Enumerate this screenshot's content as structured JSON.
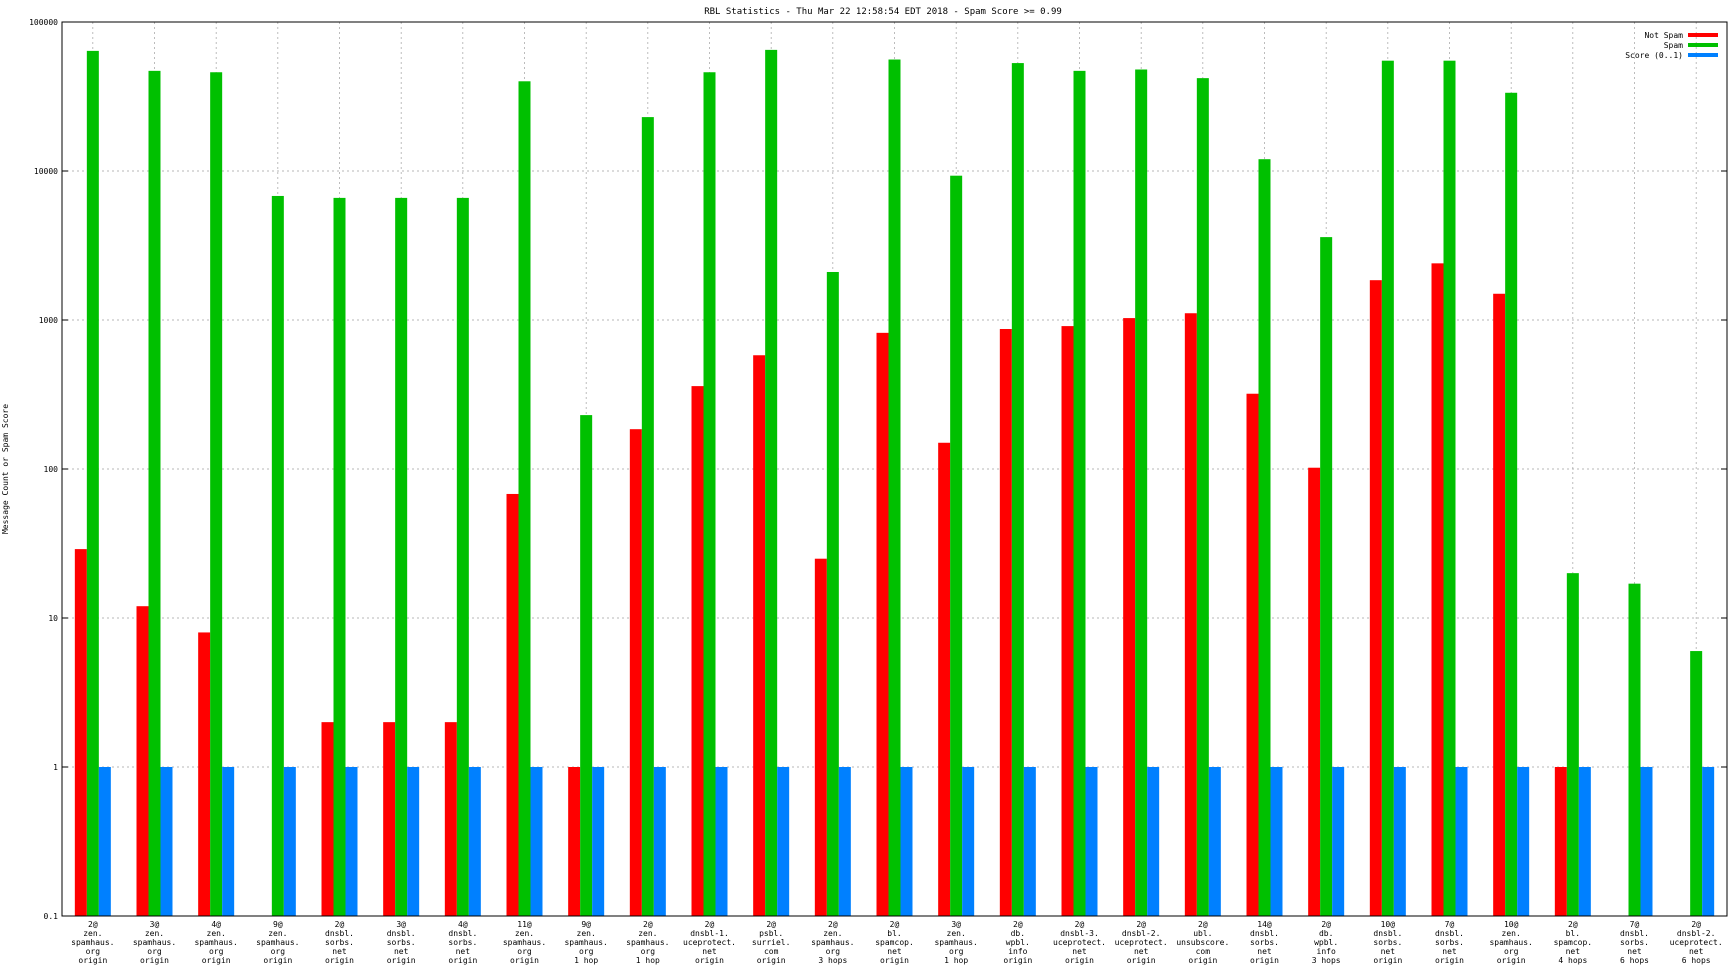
{
  "chart_data": {
    "type": "bar",
    "title": "RBL Statistics - Thu Mar 22 12:58:54 EDT 2018 - Spam Score >= 0.99",
    "ylabel": "Message Count or Spam Score",
    "xlabel": "",
    "yscale": "log",
    "ylim": [
      0.1,
      100000
    ],
    "yticks": [
      {
        "value": 0.1,
        "label": "0.1"
      },
      {
        "value": 1,
        "label": "1"
      },
      {
        "value": 10,
        "label": "10"
      },
      {
        "value": 100,
        "label": "100"
      },
      {
        "value": 1000,
        "label": "1000"
      },
      {
        "value": 10000,
        "label": "10000"
      },
      {
        "value": 100000,
        "label": "100000"
      }
    ],
    "grid": true,
    "legend_position": "top-right",
    "categories": [
      [
        "2@",
        "zen.",
        "spamhaus.",
        "org",
        "origin"
      ],
      [
        "3@",
        "zen.",
        "spamhaus.",
        "org",
        "origin"
      ],
      [
        "4@",
        "zen.",
        "spamhaus.",
        "org",
        "origin"
      ],
      [
        "9@",
        "zen.",
        "spamhaus.",
        "org",
        "origin"
      ],
      [
        "2@",
        "dnsbl.",
        "sorbs.",
        "net",
        "origin"
      ],
      [
        "3@",
        "dnsbl.",
        "sorbs.",
        "net",
        "origin"
      ],
      [
        "4@",
        "dnsbl.",
        "sorbs.",
        "net",
        "origin"
      ],
      [
        "11@",
        "zen.",
        "spamhaus.",
        "org",
        "origin"
      ],
      [
        "9@",
        "zen.",
        "spamhaus.",
        "org",
        "1 hop"
      ],
      [
        "2@",
        "zen.",
        "spamhaus.",
        "org",
        "1 hop"
      ],
      [
        "2@",
        "dnsbl-1.",
        "uceprotect.",
        "net",
        "origin"
      ],
      [
        "2@",
        "psbl.",
        "surriel.",
        "com",
        "origin"
      ],
      [
        "2@",
        "zen.",
        "spamhaus.",
        "org",
        "3 hops"
      ],
      [
        "2@",
        "bl.",
        "spamcop.",
        "net",
        "origin"
      ],
      [
        "3@",
        "zen.",
        "spamhaus.",
        "org",
        "1 hop"
      ],
      [
        "2@",
        "db.",
        "wpbl.",
        "info",
        "origin"
      ],
      [
        "2@",
        "dnsbl-3.",
        "uceprotect.",
        "net",
        "origin"
      ],
      [
        "2@",
        "dnsbl-2.",
        "uceprotect.",
        "net",
        "origin"
      ],
      [
        "2@",
        "ubl.",
        "unsubscore.",
        "com",
        "origin"
      ],
      [
        "14@",
        "dnsbl.",
        "sorbs.",
        "net",
        "origin"
      ],
      [
        "2@",
        "db.",
        "wpbl.",
        "info",
        "3 hops"
      ],
      [
        "10@",
        "dnsbl.",
        "sorbs.",
        "net",
        "origin"
      ],
      [
        "7@",
        "dnsbl.",
        "sorbs.",
        "net",
        "origin"
      ],
      [
        "10@",
        "zen.",
        "spamhaus.",
        "org",
        "origin"
      ],
      [
        "2@",
        "bl.",
        "spamcop.",
        "net",
        "4 hops"
      ],
      [
        "7@",
        "dnsbl.",
        "sorbs.",
        "net",
        "6 hops"
      ],
      [
        "2@",
        "dnsbl-2.",
        "uceprotect.",
        "net",
        "6 hops"
      ]
    ],
    "series": [
      {
        "name": "Not Spam",
        "color": "#ff0000",
        "values": [
          29,
          12,
          8,
          null,
          2,
          2,
          2,
          68,
          1,
          185,
          360,
          580,
          25,
          820,
          150,
          870,
          910,
          1030,
          1110,
          320,
          102,
          1850,
          2400,
          1500,
          1,
          null,
          null
        ]
      },
      {
        "name": "Spam",
        "color": "#00c000",
        "values": [
          64000,
          47000,
          46000,
          6800,
          6600,
          6600,
          6600,
          40000,
          230,
          23000,
          46000,
          65000,
          2100,
          56000,
          9300,
          53000,
          47000,
          48000,
          42000,
          12000,
          3600,
          55000,
          55000,
          33500,
          20,
          17,
          6
        ]
      },
      {
        "name": "Score (0..1)",
        "color": "#0080ff",
        "values": [
          1,
          1,
          1,
          1,
          1,
          1,
          1,
          1,
          1,
          1,
          1,
          1,
          1,
          1,
          1,
          1,
          1,
          1,
          1,
          1,
          1,
          1,
          1,
          1,
          1,
          1,
          1
        ]
      }
    ]
  }
}
